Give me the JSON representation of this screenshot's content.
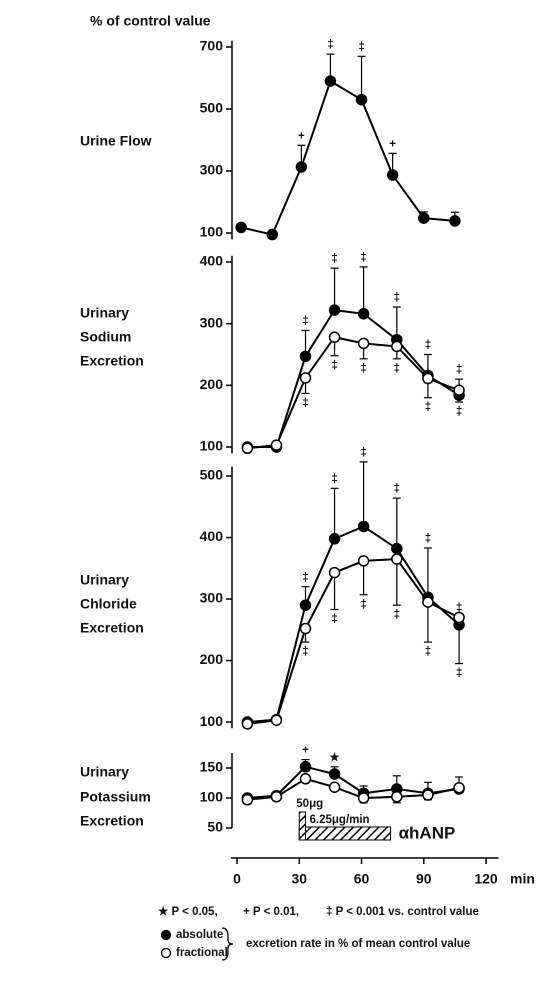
{
  "title": "% of control value",
  "shared": {
    "xlim": [
      -3,
      126
    ],
    "xticks": [
      0,
      30,
      60,
      90,
      120
    ],
    "xlabel": "min",
    "treatment": {
      "bolus_label": "50μg",
      "bolus": [
        30,
        33
      ],
      "infusion_label": "6.25μg/min",
      "infusion": [
        30,
        74
      ],
      "drug": "αhANP"
    },
    "footnotes": [
      "★ P < 0.05,",
      "+ P < 0.01,",
      "‡ P < 0.001 vs. control value"
    ],
    "legend": [
      {
        "name": "absolute",
        "fill": "#000000"
      },
      {
        "name": "fractional",
        "fill": "#ffffff"
      }
    ],
    "legend_note": "excretion rate in % of mean control value"
  },
  "chart_data": [
    {
      "type": "line",
      "ylabel": [
        "Urine Flow"
      ],
      "ylim": [
        80,
        720
      ],
      "yticks": [
        100,
        300,
        500,
        700
      ],
      "x": [
        2,
        17,
        31,
        45,
        60,
        75,
        90,
        105
      ],
      "series": [
        {
          "color": "#000000",
          "fill": "#000000",
          "error_side": "up",
          "values": [
            118,
            95,
            313,
            590,
            530,
            287,
            148,
            139
          ],
          "errors": [
            null,
            null,
            70,
            87,
            140,
            70,
            20,
            28
          ],
          "significance": [
            null,
            null,
            "+",
            "‡",
            "‡",
            "+",
            null,
            null
          ]
        }
      ]
    },
    {
      "type": "line",
      "ylabel": [
        "Urinary",
        "Sodium",
        "Excretion"
      ],
      "ylim": [
        90,
        410
      ],
      "yticks": [
        100,
        200,
        300,
        400
      ],
      "x": [
        5,
        19,
        33,
        47,
        61,
        77,
        92,
        107
      ],
      "series": [
        {
          "color": "#000000",
          "fill": "#000000",
          "error_side": "up",
          "values": [
            100,
            100,
            247,
            322,
            316,
            274,
            216,
            184
          ],
          "errors": [
            null,
            null,
            42,
            68,
            76,
            53,
            34,
            26
          ],
          "significance": [
            null,
            null,
            "‡",
            "‡",
            "‡",
            "‡",
            "‡",
            "‡"
          ]
        },
        {
          "color": "#000000",
          "fill": "#ffffff",
          "error_side": "down",
          "values": [
            98,
            103,
            212,
            278,
            268,
            263,
            211,
            192
          ],
          "errors": [
            null,
            null,
            25,
            30,
            25,
            20,
            31,
            19
          ],
          "significance": [
            null,
            null,
            "‡",
            "‡",
            "‡",
            "‡",
            "‡",
            "‡"
          ]
        }
      ]
    },
    {
      "type": "line",
      "ylabel": [
        "Urinary",
        "Chloride",
        "Excretion"
      ],
      "ylim": [
        90,
        515
      ],
      "yticks": [
        100,
        200,
        300,
        400,
        500
      ],
      "x": [
        5,
        19,
        33,
        47,
        61,
        77,
        92,
        107
      ],
      "series": [
        {
          "color": "#000000",
          "fill": "#000000",
          "error_side": "up",
          "values": [
            100,
            104,
            290,
            398,
            418,
            382,
            303,
            258
          ],
          "errors": [
            null,
            null,
            30,
            82,
            105,
            82,
            80,
            12
          ],
          "significance": [
            null,
            null,
            "‡",
            "‡",
            "‡",
            "‡",
            "‡",
            "‡"
          ]
        },
        {
          "color": "#000000",
          "fill": "#ffffff",
          "error_side": "down",
          "values": [
            97,
            103,
            252,
            343,
            362,
            365,
            295,
            270
          ],
          "errors": [
            null,
            null,
            22,
            60,
            55,
            75,
            65,
            75
          ],
          "significance": [
            null,
            null,
            "‡",
            "‡",
            "‡",
            "‡",
            "‡",
            "‡"
          ]
        }
      ]
    },
    {
      "type": "line",
      "ylabel": [
        "Urinary",
        "Potassium",
        "Excretion"
      ],
      "ylim": [
        50,
        175
      ],
      "yticks": [
        50,
        100,
        150
      ],
      "x": [
        5,
        19,
        33,
        47,
        61,
        77,
        92,
        107
      ],
      "series": [
        {
          "color": "#000000",
          "fill": "#000000",
          "error_side": "up",
          "values": [
            100,
            104,
            152,
            140,
            108,
            115,
            108,
            115
          ],
          "errors": [
            null,
            null,
            12,
            12,
            12,
            22,
            18,
            20
          ],
          "significance": [
            null,
            null,
            "+",
            "★",
            null,
            null,
            null,
            null
          ]
        },
        {
          "color": "#000000",
          "fill": "#ffffff",
          "error_side": "down",
          "values": [
            97,
            102,
            132,
            118,
            100,
            102,
            105,
            117
          ],
          "errors": [
            null,
            null,
            6,
            5,
            8,
            10,
            8,
            6
          ]
        }
      ]
    }
  ]
}
